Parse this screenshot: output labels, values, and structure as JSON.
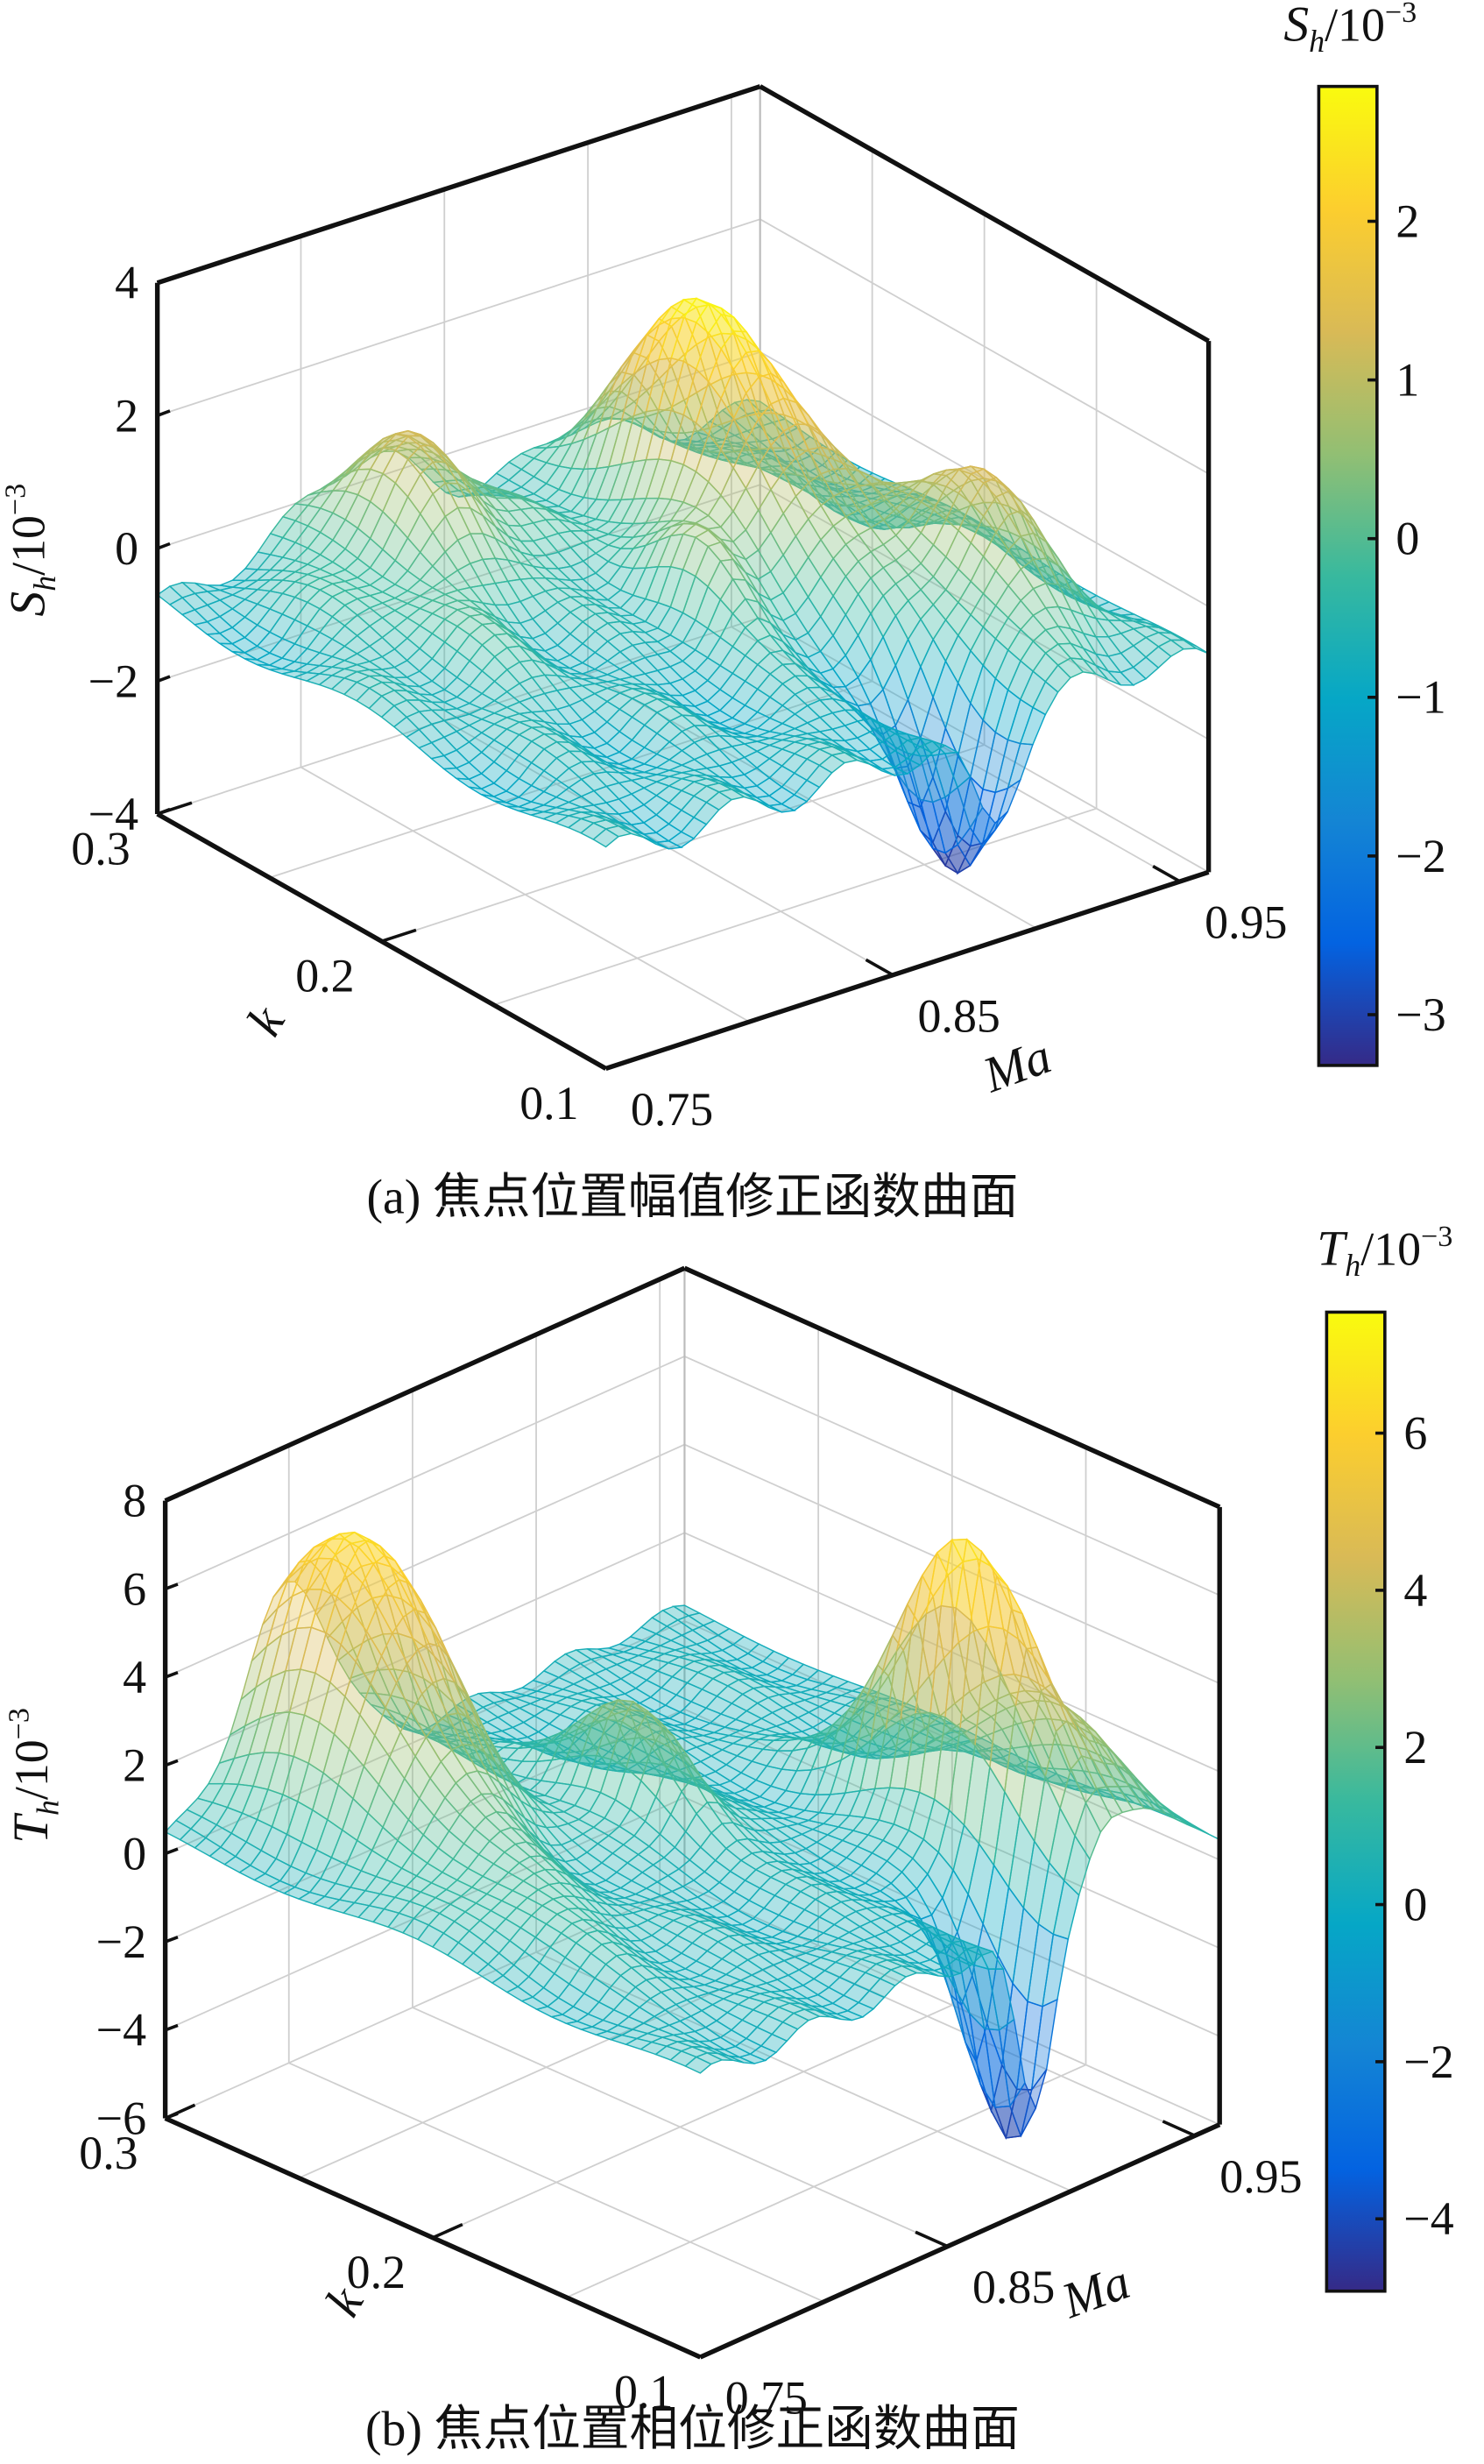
{
  "chart_data": [
    {
      "type": "surface",
      "id": "a",
      "caption": "(a) 焦点位置幅值修正函数曲面",
      "xlabel": "Ma",
      "ylabel": "k",
      "zlabel": {
        "main": "S",
        "sub": "h",
        "unit": "/10",
        "exp": "−3"
      },
      "colorbar_title": {
        "main": "S",
        "sub": "h",
        "unit": "/10",
        "exp": "−3"
      },
      "xlim": [
        0.75,
        0.96
      ],
      "ylim": [
        0.1,
        0.3
      ],
      "zlim": [
        -4,
        4
      ],
      "clim": [
        -3.32,
        2.85
      ],
      "x_ticks": [
        {
          "v": 0.75,
          "label": "0.75"
        },
        {
          "v": 0.85,
          "label": "0.85"
        },
        {
          "v": 0.95,
          "label": "0.95"
        }
      ],
      "y_ticks": [
        {
          "v": 0.1,
          "label": "0.1"
        },
        {
          "v": 0.2,
          "label": "0.2"
        },
        {
          "v": 0.3,
          "label": "0.3"
        }
      ],
      "z_ticks": [
        {
          "v": 4,
          "label": "4"
        },
        {
          "v": 2,
          "label": "2"
        },
        {
          "v": 0,
          "label": "0"
        },
        {
          "v": -2,
          "label": "−2"
        },
        {
          "v": -4,
          "label": "−4"
        }
      ],
      "colorbar_ticks": [
        {
          "v": 2,
          "label": "2"
        },
        {
          "v": 1,
          "label": "1"
        },
        {
          "v": 0,
          "label": "0"
        },
        {
          "v": -1,
          "label": "−1"
        },
        {
          "v": -2,
          "label": "−2"
        },
        {
          "v": -3,
          "label": "−3"
        }
      ],
      "grid": true,
      "surface": {
        "base": -0.8,
        "features": [
          {
            "ma": 0.895,
            "k": 0.235,
            "amp": 3.6,
            "sma": 0.014,
            "sk": 0.035
          },
          {
            "ma": 0.925,
            "k": 0.16,
            "amp": 2.0,
            "sma": 0.014,
            "sk": 0.03
          },
          {
            "ma": 0.885,
            "k": 0.12,
            "amp": -2.5,
            "sma": 0.008,
            "sk": 0.018
          },
          {
            "ma": 0.82,
            "k": 0.275,
            "amp": 1.9,
            "sma": 0.02,
            "sk": 0.025
          },
          {
            "ma": 0.86,
            "k": 0.2,
            "amp": 1.4,
            "sma": 0.007,
            "sk": 0.02
          },
          {
            "ma": 0.79,
            "k": 0.22,
            "amp": 0.5,
            "sma": 0.02,
            "sk": 0.03
          }
        ]
      }
    },
    {
      "type": "surface",
      "id": "b",
      "caption": "(b) 焦点位置相位修正函数曲面",
      "xlabel": "Ma",
      "ylabel": "k",
      "zlabel": {
        "main": "T",
        "sub": "h",
        "unit": "/10",
        "exp": "−3"
      },
      "colorbar_title": {
        "main": "T",
        "sub": "h",
        "unit": "/10",
        "exp": "−3"
      },
      "xlim": [
        0.75,
        0.96
      ],
      "ylim": [
        0.1,
        0.3
      ],
      "zlim": [
        -6,
        8
      ],
      "clim": [
        -4.92,
        7.54
      ],
      "x_ticks": [
        {
          "v": 0.75,
          "label": "0.75"
        },
        {
          "v": 0.85,
          "label": "0.85"
        },
        {
          "v": 0.95,
          "label": "0.95"
        }
      ],
      "y_ticks": [
        {
          "v": 0.1,
          "label": "0.1"
        },
        {
          "v": 0.2,
          "label": "0.2"
        },
        {
          "v": 0.3,
          "label": "0.3"
        }
      ],
      "z_ticks": [
        {
          "v": 8,
          "label": "8"
        },
        {
          "v": 6,
          "label": "6"
        },
        {
          "v": 4,
          "label": "4"
        },
        {
          "v": 2,
          "label": "2"
        },
        {
          "v": 0,
          "label": "0"
        },
        {
          "v": -2,
          "label": "−2"
        },
        {
          "v": -4,
          "label": "−4"
        },
        {
          "v": -6,
          "label": "−6"
        }
      ],
      "colorbar_ticks": [
        {
          "v": 6,
          "label": "6"
        },
        {
          "v": 4,
          "label": "4"
        },
        {
          "v": 2,
          "label": "2"
        },
        {
          "v": 0,
          "label": "0"
        },
        {
          "v": -2,
          "label": "−2"
        },
        {
          "v": -4,
          "label": "−4"
        }
      ],
      "grid": true,
      "surface": {
        "base": 0.3,
        "features": [
          {
            "ma": 0.8,
            "k": 0.275,
            "amp": 6.4,
            "sma": 0.018,
            "sk": 0.03
          },
          {
            "ma": 0.912,
            "k": 0.152,
            "amp": 6.3,
            "sma": 0.007,
            "sk": 0.025
          },
          {
            "ma": 0.885,
            "k": 0.11,
            "amp": -5.0,
            "sma": 0.007,
            "sk": 0.015
          },
          {
            "ma": 0.93,
            "k": 0.13,
            "amp": 3.0,
            "sma": 0.012,
            "sk": 0.03
          },
          {
            "ma": 0.855,
            "k": 0.22,
            "amp": 2.8,
            "sma": 0.008,
            "sk": 0.02
          },
          {
            "ma": 0.78,
            "k": 0.2,
            "amp": 1.2,
            "sma": 0.015,
            "sk": 0.03
          }
        ]
      }
    }
  ]
}
